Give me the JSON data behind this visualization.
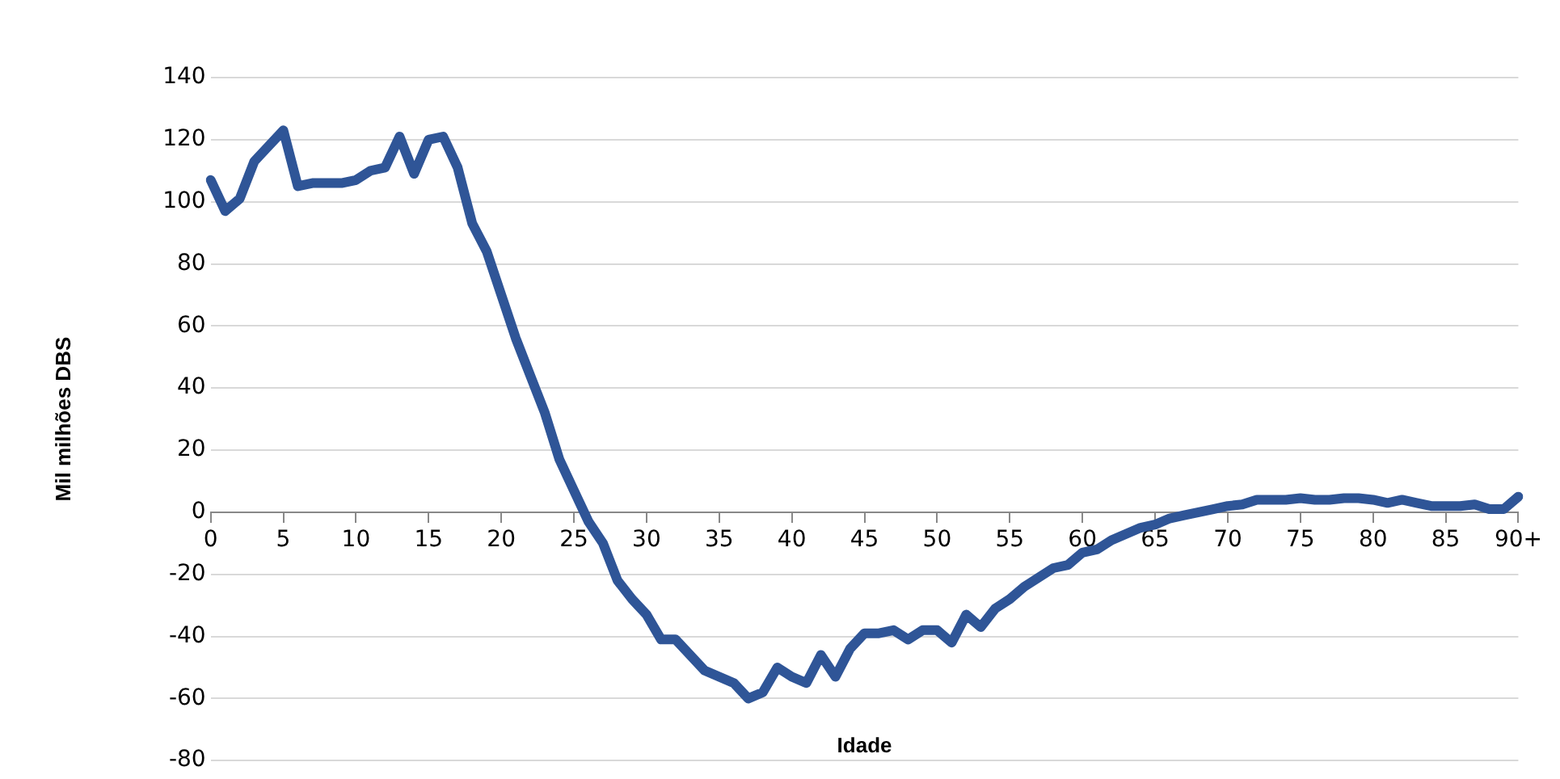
{
  "chart_data": {
    "type": "line",
    "xlabel": "Idade",
    "ylabel": "Mil milhões DBS",
    "categories": [
      "0",
      null,
      null,
      null,
      null,
      "5",
      null,
      null,
      null,
      null,
      "10",
      null,
      null,
      null,
      null,
      "15",
      null,
      null,
      null,
      null,
      "20",
      null,
      null,
      null,
      null,
      "25",
      null,
      null,
      null,
      null,
      "30",
      null,
      null,
      null,
      null,
      "35",
      null,
      null,
      null,
      null,
      "40",
      null,
      null,
      null,
      null,
      "45",
      null,
      null,
      null,
      null,
      "50",
      null,
      null,
      null,
      null,
      "55",
      null,
      null,
      null,
      null,
      "60",
      null,
      null,
      null,
      null,
      "65",
      null,
      null,
      null,
      null,
      "70",
      null,
      null,
      null,
      null,
      "75",
      null,
      null,
      null,
      null,
      "80",
      null,
      null,
      null,
      null,
      "85",
      null,
      null,
      null,
      null,
      "90+"
    ],
    "series": [
      {
        "color": "#2f5597",
        "values": [
          107,
          97,
          101,
          113,
          118,
          123,
          105,
          106,
          106,
          106,
          107,
          110,
          111,
          121,
          109,
          120,
          121,
          111,
          93,
          84,
          70,
          56,
          44,
          32,
          17,
          7,
          -3,
          -10,
          -22,
          -28,
          -33,
          -41,
          -41,
          -46,
          -51,
          -53,
          -55,
          -60,
          -58,
          -50,
          -53,
          -55,
          -46,
          -53,
          -44,
          -39,
          -39,
          -38,
          -41,
          -38,
          -38,
          -42,
          -33,
          -37,
          -31,
          -28,
          -24,
          -21,
          -18,
          -17,
          -13,
          -12,
          -9,
          -7,
          -5,
          -4,
          -2,
          -1,
          0,
          1,
          2,
          2.5,
          4,
          4,
          4,
          4.5,
          4,
          4,
          4.5,
          4.5,
          4,
          3,
          4,
          3,
          2,
          2,
          2,
          2.5,
          1,
          1,
          5
        ]
      }
    ],
    "ylim": [
      -80,
      140
    ],
    "yticks": [
      -80,
      -60,
      -40,
      -20,
      0,
      20,
      40,
      60,
      80,
      100,
      120,
      140
    ],
    "grid": "y",
    "legend": false,
    "marker": "none",
    "line_style": "solid"
  }
}
